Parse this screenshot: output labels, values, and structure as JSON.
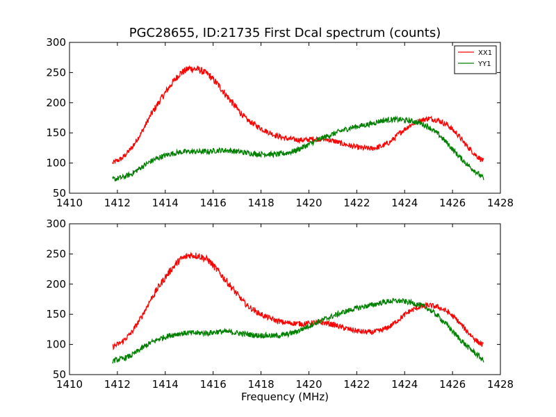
{
  "chart_data": [
    {
      "type": "line",
      "title": "PGC28655, ID:21735 First Dcal spectrum (counts)",
      "xlabel": "",
      "ylabel": "",
      "xlim": [
        1410,
        1428
      ],
      "ylim": [
        50,
        300
      ],
      "xticks": [
        "1410",
        "1412",
        "1414",
        "1416",
        "1418",
        "1420",
        "1422",
        "1424",
        "1426",
        "1428"
      ],
      "yticks": [
        "50",
        "100",
        "150",
        "200",
        "250",
        "300"
      ],
      "legend": "top-right",
      "grid": false,
      "series": [
        {
          "name": "XX1",
          "color": "#ff0000",
          "x": [
            1411.8,
            1412.2,
            1412.6,
            1413.0,
            1413.4,
            1413.8,
            1414.2,
            1414.6,
            1415.0,
            1415.4,
            1415.8,
            1416.2,
            1416.6,
            1417.0,
            1417.4,
            1417.8,
            1418.2,
            1418.6,
            1419.0,
            1419.4,
            1419.8,
            1420.2,
            1420.6,
            1421.0,
            1421.4,
            1421.8,
            1422.2,
            1422.6,
            1423.0,
            1423.4,
            1423.8,
            1424.2,
            1424.6,
            1425.0,
            1425.4,
            1425.8,
            1426.2,
            1426.6,
            1427.0,
            1427.3
          ],
          "y": [
            100,
            108,
            125,
            150,
            180,
            205,
            228,
            248,
            257,
            255,
            247,
            230,
            210,
            190,
            172,
            162,
            153,
            146,
            141,
            139,
            138,
            140,
            140,
            137,
            132,
            128,
            125,
            124,
            127,
            135,
            150,
            162,
            170,
            174,
            171,
            163,
            148,
            128,
            112,
            103
          ]
        },
        {
          "name": "YY1",
          "color": "#008000",
          "x": [
            1411.8,
            1412.2,
            1412.6,
            1413.0,
            1413.4,
            1413.8,
            1414.2,
            1414.6,
            1415.0,
            1415.4,
            1415.8,
            1416.2,
            1416.6,
            1417.0,
            1417.4,
            1417.8,
            1418.2,
            1418.6,
            1419.0,
            1419.4,
            1419.8,
            1420.2,
            1420.6,
            1421.0,
            1421.4,
            1421.8,
            1422.2,
            1422.6,
            1423.0,
            1423.4,
            1423.8,
            1424.2,
            1424.6,
            1425.0,
            1425.4,
            1425.8,
            1426.2,
            1426.6,
            1427.0,
            1427.3
          ],
          "y": [
            73,
            76,
            82,
            93,
            103,
            110,
            115,
            118,
            119,
            119,
            119,
            121,
            121,
            119,
            117,
            115,
            115,
            114,
            116,
            120,
            127,
            135,
            142,
            148,
            154,
            159,
            162,
            165,
            170,
            172,
            172,
            170,
            167,
            160,
            148,
            132,
            114,
            98,
            85,
            74
          ]
        }
      ]
    },
    {
      "type": "line",
      "title": "",
      "xlabel": "Frequency (MHz)",
      "ylabel": "",
      "xlim": [
        1410,
        1428
      ],
      "ylim": [
        50,
        300
      ],
      "xticks": [
        "1410",
        "1412",
        "1414",
        "1416",
        "1418",
        "1420",
        "1422",
        "1424",
        "1426",
        "1428"
      ],
      "yticks": [
        "50",
        "100",
        "150",
        "200",
        "250",
        "300"
      ],
      "grid": false,
      "series": [
        {
          "color": "#ff0000",
          "x": [
            1411.8,
            1412.2,
            1412.6,
            1413.0,
            1413.4,
            1413.8,
            1414.2,
            1414.6,
            1415.0,
            1415.4,
            1415.8,
            1416.2,
            1416.6,
            1417.0,
            1417.4,
            1417.8,
            1418.2,
            1418.6,
            1419.0,
            1419.4,
            1419.8,
            1420.2,
            1420.6,
            1421.0,
            1421.4,
            1421.8,
            1422.2,
            1422.6,
            1423.0,
            1423.4,
            1423.8,
            1424.2,
            1424.6,
            1425.0,
            1425.4,
            1425.8,
            1426.2,
            1426.6,
            1427.0,
            1427.3
          ],
          "y": [
            96,
            104,
            120,
            145,
            175,
            200,
            222,
            240,
            248,
            247,
            240,
            222,
            203,
            183,
            165,
            154,
            146,
            140,
            136,
            135,
            134,
            136,
            136,
            133,
            128,
            124,
            121,
            120,
            123,
            130,
            143,
            155,
            162,
            165,
            162,
            154,
            140,
            122,
            106,
            98
          ]
        },
        {
          "color": "#008000",
          "x": [
            1411.8,
            1412.2,
            1412.6,
            1413.0,
            1413.4,
            1413.8,
            1414.2,
            1414.6,
            1415.0,
            1415.4,
            1415.8,
            1416.2,
            1416.6,
            1417.0,
            1417.4,
            1417.8,
            1418.2,
            1418.6,
            1419.0,
            1419.4,
            1419.8,
            1420.2,
            1420.6,
            1421.0,
            1421.4,
            1421.8,
            1422.2,
            1422.6,
            1423.0,
            1423.4,
            1423.8,
            1424.2,
            1424.6,
            1425.0,
            1425.4,
            1425.8,
            1426.2,
            1426.6,
            1427.0,
            1427.3
          ],
          "y": [
            73,
            76,
            82,
            93,
            103,
            110,
            115,
            118,
            119,
            119,
            119,
            121,
            121,
            119,
            117,
            115,
            115,
            114,
            116,
            120,
            127,
            134,
            141,
            147,
            153,
            158,
            162,
            165,
            169,
            172,
            172,
            170,
            166,
            159,
            147,
            131,
            113,
            97,
            84,
            73
          ]
        }
      ]
    }
  ]
}
